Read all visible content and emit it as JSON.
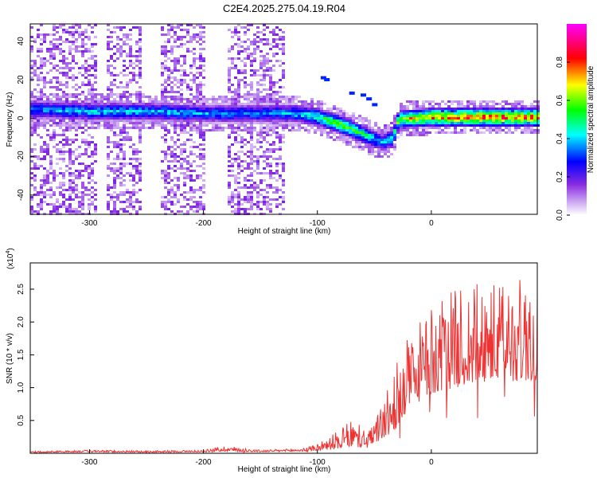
{
  "title": "C2E4.2025.275.04.19.R04",
  "chart_data": [
    {
      "type": "heatmap",
      "title": "C2E4.2025.275.04.19.R04",
      "xlabel": "Height of straight line (km)",
      "ylabel": "Frequency (Hz)",
      "xlim": [
        -352,
        93
      ],
      "ylim": [
        -50,
        49
      ],
      "x_ticks": [
        "-300",
        "-200",
        "-100",
        "0"
      ],
      "y_ticks": [
        "40",
        "20",
        "0",
        "-20",
        "-40"
      ],
      "colorbar": {
        "label": "Normalized spectral amplitude",
        "range": [
          0,
          1
        ],
        "ticks": [
          "0.0",
          "0.2",
          "0.4",
          "0.6",
          "0.8"
        ],
        "colors": [
          "#ffffff",
          "#8a2be2",
          "#0000ff",
          "#00ffff",
          "#00ff00",
          "#ffff00",
          "#ff0000",
          "#ff00ff"
        ]
      },
      "ridge": {
        "x": [
          -345,
          -300,
          -250,
          -200,
          -150,
          -120,
          -100,
          -80,
          -60,
          -45,
          -35,
          -30,
          0,
          50,
          93
        ],
        "freq": [
          5,
          4,
          4,
          3,
          3,
          3,
          1,
          -3,
          -8,
          -12,
          -10,
          0,
          1,
          1,
          1
        ],
        "amplitude": [
          0.4,
          0.45,
          0.45,
          0.4,
          0.4,
          0.45,
          0.55,
          0.65,
          0.55,
          0.4,
          0.5,
          0.7,
          0.85,
          0.9,
          0.85
        ]
      },
      "noise_bands_km": [
        [
          -352,
          -295
        ],
        [
          -285,
          -255
        ],
        [
          -240,
          -200
        ],
        [
          -180,
          -130
        ]
      ]
    },
    {
      "type": "line",
      "xlabel": "Height of straight line (km)",
      "ylabel": "SNR (10 * v/v)",
      "scale_label": "(x10",
      "scale_exp": "4",
      "scale_close": ")",
      "xlim": [
        -352,
        93
      ],
      "ylim": [
        0,
        2.9
      ],
      "x_ticks": [
        "-300",
        "-200",
        "-100",
        "0"
      ],
      "y_ticks": [
        "2.5",
        "2.0",
        "1.5",
        "1.0",
        "0.5"
      ],
      "color": "#ee3333",
      "envelope": {
        "x": [
          -352,
          -300,
          -250,
          -200,
          -180,
          -150,
          -110,
          -90,
          -70,
          -55,
          -45,
          -35,
          -25,
          -10,
          0,
          20,
          40,
          60,
          80,
          93
        ],
        "base": [
          0.01,
          0.02,
          0.01,
          0.02,
          0.03,
          0.02,
          0.03,
          0.05,
          0.1,
          0.08,
          0.2,
          0.3,
          0.5,
          0.8,
          0.9,
          1.0,
          1.05,
          1.1,
          1.1,
          1.1
        ],
        "peak": [
          0.03,
          0.05,
          0.04,
          0.05,
          0.12,
          0.05,
          0.08,
          0.25,
          0.5,
          0.35,
          0.7,
          1.1,
          1.7,
          2.0,
          2.2,
          2.5,
          2.6,
          2.6,
          2.7,
          2.7
        ]
      }
    }
  ]
}
